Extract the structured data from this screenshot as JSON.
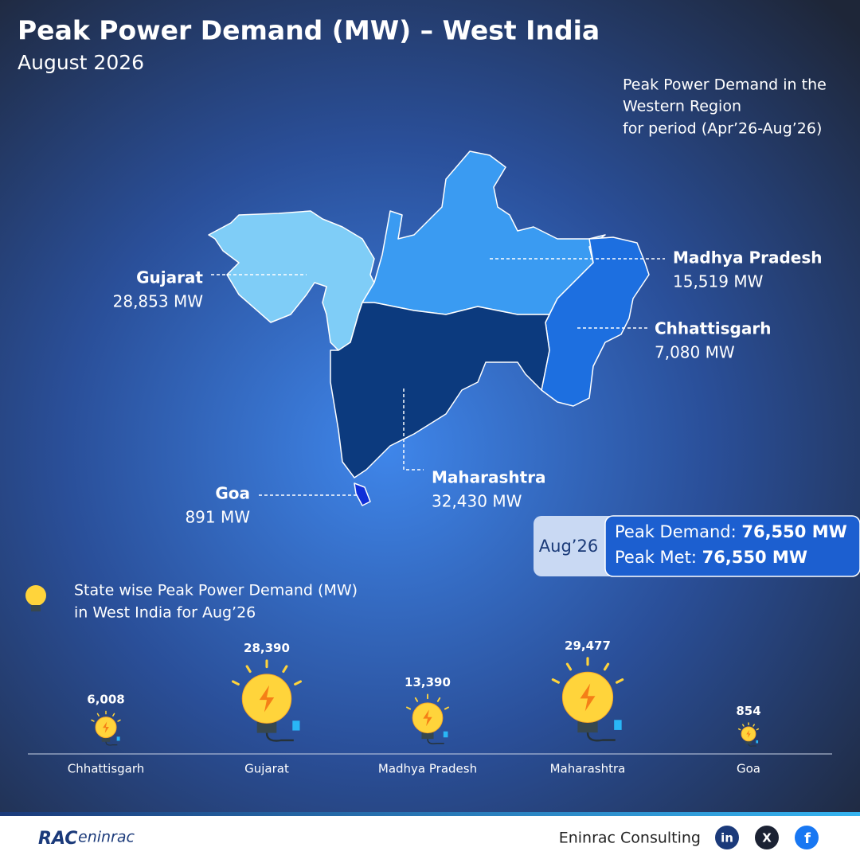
{
  "header": {
    "title": "Peak Power Demand (MW) – West India",
    "subtitle": "August 2026",
    "note": [
      "Peak Power Demand in the",
      "Western Region",
      "for period (Apr’26-Aug’26)"
    ]
  },
  "map": {
    "regions": [
      {
        "name": "Gujarat",
        "label": "28,853 MW"
      },
      {
        "name": "Madhya Pradesh",
        "label": "15,519 MW"
      },
      {
        "name": "Chhattisgarh",
        "label": "7,080 MW"
      },
      {
        "name": "Maharashtra",
        "label": "32,430 MW"
      },
      {
        "name": "Goa",
        "label": "891 MW"
      }
    ]
  },
  "summary": {
    "period": "Aug’26",
    "demand_label": "Peak Demand:",
    "demand": "76,550 MW",
    "met_label": "Peak Met:",
    "met": "76,550 MW"
  },
  "chart_data": {
    "type": "bulb",
    "title": [
      "State wise Peak Power Demand (MW)",
      "in West India for Aug’26"
    ],
    "categories": [
      "Chhattisgarh",
      "Gujarat",
      "Madhya Pradesh",
      "Maharashtra",
      "Goa"
    ],
    "values": [
      6008,
      28390,
      13390,
      29477,
      854
    ],
    "value_labels": [
      "6,008",
      "28,390",
      "13,390",
      "29,477",
      "854"
    ],
    "color": "#ffd43b"
  },
  "footer": {
    "logo": [
      "RAC",
      "eninrac"
    ],
    "company": "Eninrac Consulting",
    "social": [
      "in",
      "X",
      "f"
    ]
  }
}
